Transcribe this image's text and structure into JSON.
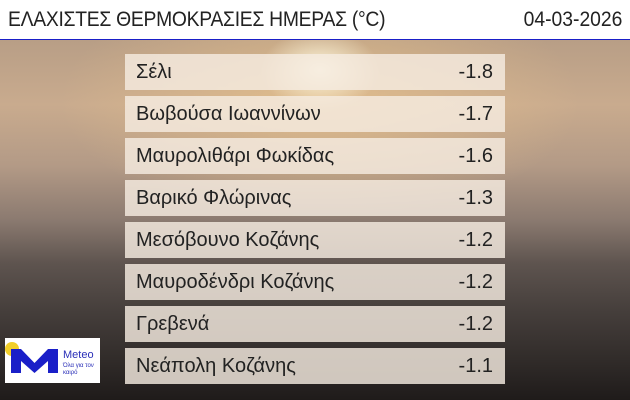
{
  "header": {
    "title": "ΕΛΑΧΙΣΤΕΣ ΘΕΡΜΟΚΡΑΣΙΕΣ ΗΜΕΡΑΣ (°C)",
    "date": "04-03-2026"
  },
  "rows": [
    {
      "name": "Σέλι",
      "value": "-1.8"
    },
    {
      "name": "Βωβούσα Ιωαννίνων",
      "value": "-1.7"
    },
    {
      "name": "Μαυρολιθάρι Φωκίδας",
      "value": "-1.6"
    },
    {
      "name": "Βαρικό Φλώρινας",
      "value": "-1.3"
    },
    {
      "name": "Μεσόβουνο Κοζάνης",
      "value": "-1.2"
    },
    {
      "name": "Μαυροδένδρι Κοζάνης",
      "value": "-1.2"
    },
    {
      "name": "Γρεβενά",
      "value": "-1.2"
    },
    {
      "name": "Νεάπολη Κοζάνης",
      "value": "-1.1"
    }
  ],
  "logo": {
    "brand": "Meteo",
    "tagline": "Όλα για τον καιρό"
  },
  "colors": {
    "accent": "#1a1fc8",
    "sun": "#f2cf2a"
  }
}
